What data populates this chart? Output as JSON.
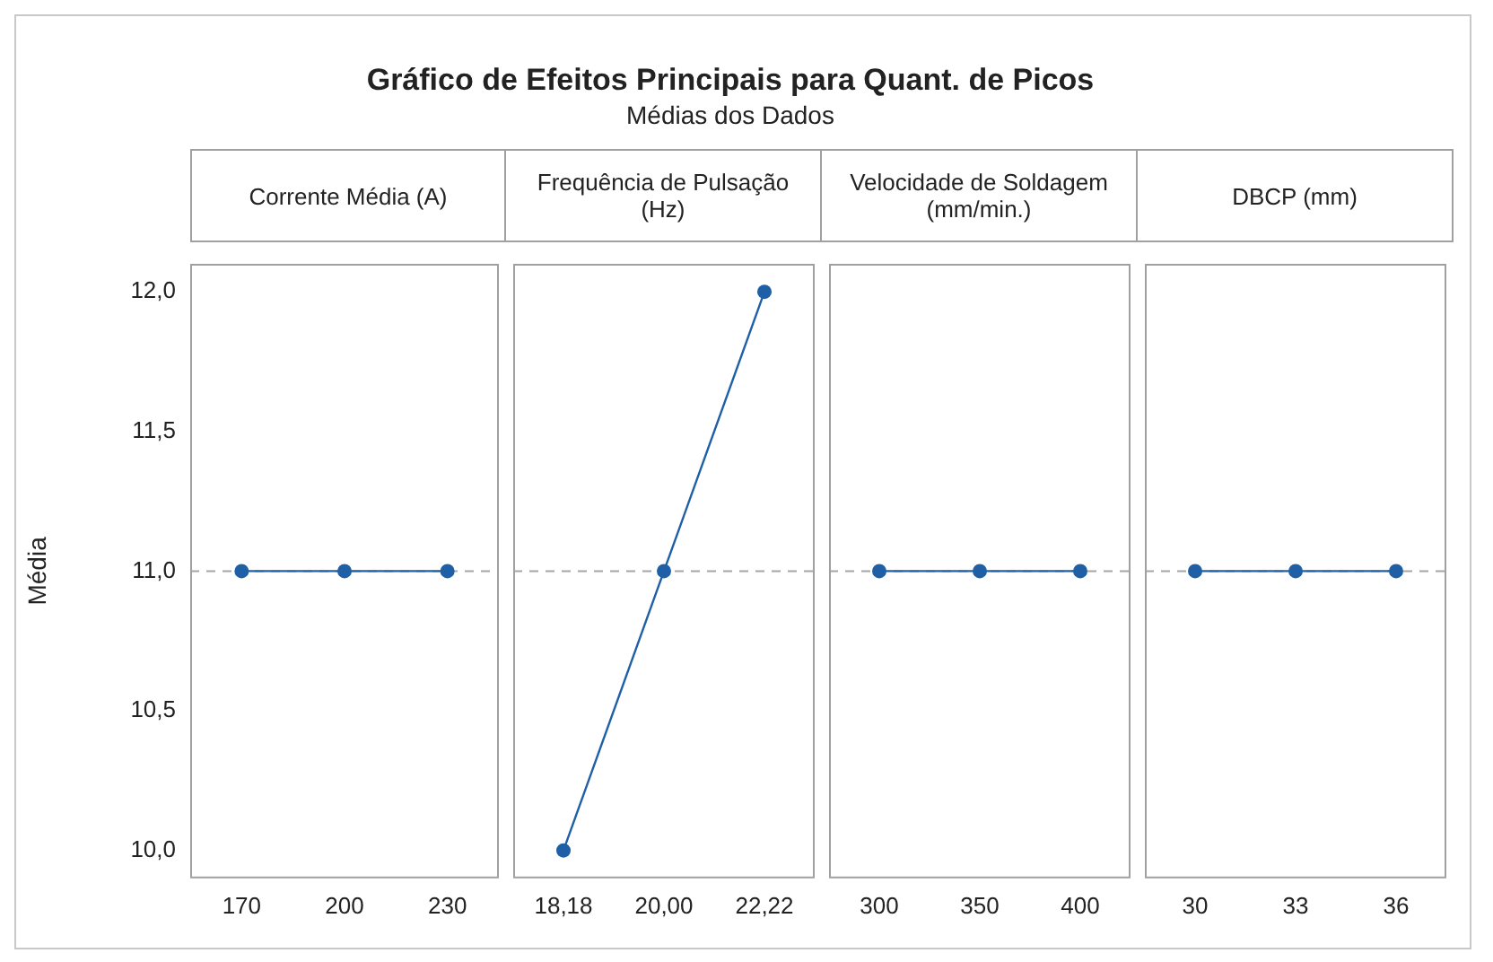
{
  "chart_data": [
    {
      "type": "line",
      "title": "Gráfico de Efeitos Principais para Quant. de Picos",
      "annotations": [
        "Corrente Média (A)"
      ],
      "ylabel": "Média",
      "categories": [
        "170",
        "200",
        "230"
      ],
      "series": [
        {
          "color": "#1f5fa6",
          "values": [
            11,
            11,
            11
          ]
        }
      ],
      "ylim": [
        9.9,
        12.1
      ],
      "yticks": [
        {
          "value": 10,
          "label": "10,0"
        },
        {
          "value": 10.5,
          "label": "10,5"
        },
        {
          "value": 11,
          "label": "11,0"
        },
        {
          "value": 11.5,
          "label": "11,5"
        },
        {
          "value": 12,
          "label": "12,0"
        }
      ],
      "ref_lines": [
        {
          "axis": "y",
          "value": 11,
          "color": "#a6a6a6",
          "line_style": "dashed"
        }
      ],
      "marker": "circle",
      "line_style": "solid",
      "grid": false,
      "legend": false
    },
    {
      "type": "line",
      "subtitle": "Médias dos Dados",
      "annotations": [
        "Frequência de Pulsação (Hz)"
      ],
      "categories": [
        "18,18",
        "20,00",
        "22,22"
      ],
      "series": [
        {
          "color": "#1f5fa6",
          "values": [
            10,
            11,
            12
          ]
        }
      ],
      "ylim": [
        9.9,
        12.1
      ],
      "ref_lines": [
        {
          "axis": "y",
          "value": 11,
          "color": "#a6a6a6",
          "line_style": "dashed"
        }
      ],
      "marker": "circle",
      "line_style": "solid",
      "grid": false,
      "legend": false,
      "tick_labels": "x"
    },
    {
      "type": "line",
      "annotations": [
        "Velocidade de Soldagem (mm/min.)"
      ],
      "categories": [
        "300",
        "350",
        "400"
      ],
      "series": [
        {
          "color": "#1f5fa6",
          "values": [
            11,
            11,
            11
          ]
        }
      ],
      "ylim": [
        9.9,
        12.1
      ],
      "ref_lines": [
        {
          "axis": "y",
          "value": 11,
          "color": "#a6a6a6",
          "line_style": "dashed"
        }
      ],
      "marker": "circle",
      "line_style": "solid",
      "grid": false,
      "legend": false,
      "tick_labels": "x"
    },
    {
      "type": "line",
      "annotations": [
        "DBCP (mm)"
      ],
      "categories": [
        "30",
        "33",
        "36"
      ],
      "series": [
        {
          "color": "#1f5fa6",
          "values": [
            11,
            11,
            11
          ]
        }
      ],
      "ylim": [
        9.9,
        12.1
      ],
      "ref_lines": [
        {
          "axis": "y",
          "value": 11,
          "color": "#a6a6a6",
          "line_style": "dashed"
        }
      ],
      "marker": "circle",
      "line_style": "solid",
      "grid": false,
      "legend": false,
      "tick_labels": "x"
    }
  ]
}
